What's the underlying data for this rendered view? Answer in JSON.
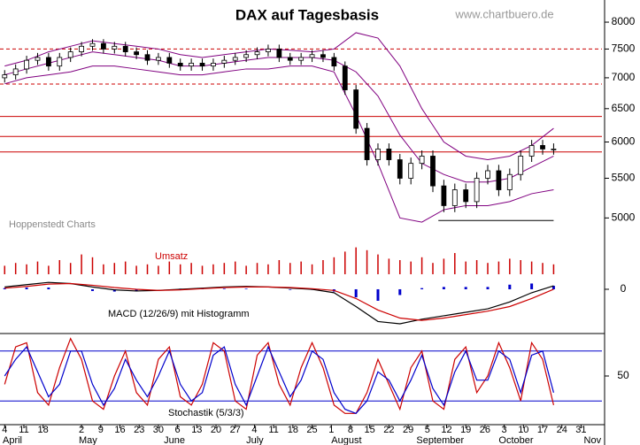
{
  "title": "DAX auf Tagesbasis",
  "source": "www.chartbuero.de",
  "credit": "Hoppenstedt Charts",
  "chart_data": [
    {
      "type": "candlestick",
      "x": [
        3,
        7,
        11,
        15,
        19,
        23,
        27,
        31,
        35,
        39,
        43,
        47,
        51,
        55,
        59,
        63,
        67,
        71,
        75,
        79,
        83,
        87,
        91,
        95,
        99,
        103,
        107,
        111,
        115,
        119,
        123,
        127,
        131,
        135,
        139,
        143,
        147,
        151,
        155,
        159,
        163,
        167,
        171,
        175,
        179,
        183,
        187,
        191,
        195,
        199,
        203
      ],
      "open": [
        7000,
        7050,
        7150,
        7300,
        7350,
        7200,
        7350,
        7450,
        7550,
        7600,
        7500,
        7550,
        7450,
        7400,
        7300,
        7350,
        7250,
        7200,
        7250,
        7200,
        7250,
        7300,
        7350,
        7400,
        7450,
        7500,
        7350,
        7300,
        7350,
        7400,
        7350,
        7200,
        6800,
        6200,
        5750,
        5900,
        5750,
        5500,
        5700,
        5800,
        5400,
        5150,
        5350,
        5200,
        5500,
        5600,
        5350,
        5550,
        5800,
        5950,
        5900
      ],
      "high": [
        7130,
        7230,
        7380,
        7430,
        7430,
        7430,
        7530,
        7630,
        7680,
        7680,
        7630,
        7630,
        7530,
        7480,
        7430,
        7430,
        7330,
        7330,
        7330,
        7330,
        7380,
        7430,
        7480,
        7530,
        7580,
        7580,
        7430,
        7430,
        7480,
        7480,
        7430,
        7280,
        6880,
        6280,
        5980,
        5980,
        5830,
        5780,
        5880,
        5880,
        5480,
        5430,
        5430,
        5580,
        5680,
        5680,
        5630,
        5880,
        6030,
        6030,
        5980
      ],
      "low": [
        6920,
        6970,
        7070,
        7220,
        7120,
        7120,
        7270,
        7370,
        7470,
        7420,
        7420,
        7370,
        7320,
        7220,
        7220,
        7170,
        7120,
        7120,
        7120,
        7120,
        7170,
        7220,
        7270,
        7320,
        7370,
        7270,
        7220,
        7220,
        7270,
        7270,
        7120,
        6720,
        6120,
        5670,
        5670,
        5670,
        5420,
        5420,
        5620,
        5320,
        5070,
        5070,
        5120,
        5120,
        5420,
        5270,
        5270,
        5470,
        5720,
        5820,
        5820
      ],
      "close": [
        7050,
        7150,
        7300,
        7350,
        7200,
        7350,
        7450,
        7550,
        7600,
        7500,
        7550,
        7450,
        7400,
        7300,
        7350,
        7250,
        7200,
        7250,
        7200,
        7250,
        7300,
        7350,
        7400,
        7450,
        7500,
        7350,
        7300,
        7350,
        7400,
        7350,
        7200,
        6800,
        6200,
        5750,
        5900,
        5750,
        5500,
        5700,
        5800,
        5400,
        5150,
        5350,
        5200,
        5500,
        5600,
        5350,
        5550,
        5800,
        5950,
        5900,
        5900
      ],
      "xlim": [
        1.3,
        220.6
      ],
      "ylim": [
        4705,
        8437
      ],
      "log": true,
      "yticks": [
        5000,
        5500,
        6000,
        6500,
        7000,
        7500,
        8000
      ],
      "bands": {
        "color": "#800080",
        "x": [
          3,
          11,
          19,
          27,
          35,
          43,
          51,
          59,
          67,
          75,
          83,
          91,
          99,
          107,
          115,
          123,
          131,
          139,
          147,
          155,
          163,
          171,
          179,
          187,
          195,
          203
        ],
        "series": [
          {
            "values": [
              7200,
              7300,
              7450,
              7550,
              7650,
              7600,
              7550,
              7500,
              7400,
              7350,
              7400,
              7450,
              7500,
              7480,
              7450,
              7500,
              7800,
              7700,
              7200,
              6500,
              6000,
              5800,
              5750,
              5800,
              5950,
              6200
            ]
          },
          {
            "values": [
              7050,
              7150,
              7250,
              7350,
              7450,
              7400,
              7350,
              7300,
              7200,
              7200,
              7250,
              7300,
              7350,
              7350,
              7350,
              7300,
              7100,
              6700,
              6100,
              5700,
              5550,
              5450,
              5450,
              5500,
              5650,
              5800
            ]
          },
          {
            "values": [
              6900,
              7000,
              7050,
              7100,
              7200,
              7200,
              7150,
              7100,
              7050,
              7050,
              7100,
              7150,
              7150,
              7200,
              7200,
              7100,
              6400,
              5700,
              5000,
              4950,
              5100,
              5150,
              5150,
              5200,
              5300,
              5350
            ]
          }
        ]
      },
      "reference_color": "#cc0000",
      "reference_lines": [
        {
          "value": 7500,
          "style": "dashed"
        },
        {
          "value": 6895,
          "style": "dashed"
        },
        {
          "value": 6380,
          "style": "solid"
        },
        {
          "value": 6080,
          "style": "solid"
        },
        {
          "value": 5859,
          "style": "solid"
        }
      ],
      "support_line": {
        "value": 4970,
        "x": [
          161,
          203
        ]
      },
      "volume": {
        "title": "Umsatz",
        "color": "#cc0000",
        "ylim": [
          0,
          100
        ],
        "values": [
          30,
          40,
          35,
          45,
          30,
          50,
          40,
          70,
          60,
          35,
          40,
          45,
          30,
          35,
          30,
          45,
          35,
          40,
          30,
          35,
          40,
          45,
          30,
          40,
          35,
          50,
          40,
          45,
          35,
          50,
          60,
          80,
          95,
          85,
          70,
          55,
          50,
          45,
          60,
          40,
          55,
          75,
          45,
          50,
          40,
          45,
          55,
          50,
          45,
          40,
          35
        ]
      }
    },
    {
      "type": "line",
      "title": "MACD (12/26/9) mit Histogramm",
      "x": [
        3,
        11,
        19,
        27,
        35,
        43,
        51,
        59,
        67,
        75,
        83,
        91,
        99,
        107,
        115,
        123,
        131,
        139,
        147,
        155,
        163,
        171,
        179,
        187,
        195,
        203
      ],
      "xlim": [
        1.3,
        220.6
      ],
      "ylim": [
        -346,
        69
      ],
      "yticks": [
        0
      ],
      "series": [
        {
          "color": "#000000",
          "values": [
            20,
            40,
            60,
            50,
            20,
            -5,
            -15,
            -10,
            0,
            10,
            20,
            25,
            20,
            10,
            0,
            -30,
            -150,
            -280,
            -300,
            -260,
            -230,
            -200,
            -170,
            -110,
            -30,
            30
          ]
        },
        {
          "color": "#cc0000",
          "values": [
            10,
            25,
            45,
            50,
            35,
            15,
            0,
            -10,
            -5,
            5,
            15,
            20,
            20,
            15,
            5,
            -10,
            -80,
            -180,
            -250,
            -270,
            -250,
            -220,
            -190,
            -150,
            -80,
            0
          ]
        }
      ],
      "histogram": {
        "color": "#0000cc",
        "values": [
          10,
          15,
          15,
          0,
          -15,
          -20,
          -15,
          0,
          5,
          5,
          5,
          5,
          0,
          -5,
          -5,
          -20,
          -70,
          -100,
          -50,
          10,
          20,
          20,
          20,
          40,
          50,
          30
        ]
      }
    },
    {
      "type": "line",
      "title": "Stochastik (5/3/3)",
      "x": [
        3,
        7,
        11,
        15,
        19,
        23,
        27,
        31,
        35,
        39,
        43,
        47,
        51,
        55,
        59,
        63,
        67,
        71,
        75,
        79,
        83,
        87,
        91,
        95,
        99,
        103,
        107,
        111,
        115,
        119,
        123,
        127,
        131,
        135,
        139,
        143,
        147,
        151,
        155,
        159,
        163,
        167,
        171,
        175,
        179,
        183,
        187,
        191,
        195,
        199,
        203
      ],
      "xlim": [
        1.3,
        220.6
      ],
      "ylim": [
        0,
        100
      ],
      "yticks": [
        50
      ],
      "hlines": [
        20,
        80
      ],
      "hline_color": "#0000cc",
      "series": [
        {
          "color": "#cc0000",
          "values": [
            40,
            85,
            90,
            30,
            15,
            60,
            95,
            70,
            20,
            10,
            50,
            80,
            30,
            15,
            70,
            85,
            25,
            15,
            40,
            90,
            80,
            20,
            10,
            75,
            90,
            40,
            15,
            60,
            90,
            60,
            15,
            5,
            5,
            30,
            70,
            40,
            10,
            60,
            80,
            20,
            10,
            70,
            85,
            30,
            50,
            90,
            60,
            20,
            90,
            70,
            15
          ]
        },
        {
          "color": "#0000cc",
          "values": [
            50,
            70,
            85,
            55,
            25,
            40,
            80,
            80,
            40,
            15,
            35,
            70,
            45,
            25,
            50,
            80,
            40,
            20,
            30,
            75,
            85,
            40,
            15,
            50,
            85,
            55,
            25,
            45,
            80,
            70,
            30,
            10,
            5,
            20,
            55,
            45,
            20,
            45,
            75,
            35,
            15,
            55,
            80,
            45,
            45,
            80,
            70,
            30,
            75,
            80,
            30
          ]
        }
      ],
      "xticks": [
        {
          "value": 3,
          "label": "4"
        },
        {
          "value": 10,
          "label": "11"
        },
        {
          "value": 17,
          "label": "18"
        },
        {
          "value": 31,
          "label": "2"
        },
        {
          "value": 38,
          "label": "9"
        },
        {
          "value": 45,
          "label": "16"
        },
        {
          "value": 52,
          "label": "23"
        },
        {
          "value": 59,
          "label": "30"
        },
        {
          "value": 66,
          "label": "6"
        },
        {
          "value": 73,
          "label": "13"
        },
        {
          "value": 80,
          "label": "20"
        },
        {
          "value": 87,
          "label": "27"
        },
        {
          "value": 94,
          "label": "4"
        },
        {
          "value": 101,
          "label": "11"
        },
        {
          "value": 108,
          "label": "18"
        },
        {
          "value": 115,
          "label": "25"
        },
        {
          "value": 122,
          "label": "1"
        },
        {
          "value": 129,
          "label": "8"
        },
        {
          "value": 136,
          "label": "15"
        },
        {
          "value": 143,
          "label": "22"
        },
        {
          "value": 150,
          "label": "29"
        },
        {
          "value": 157,
          "label": "5"
        },
        {
          "value": 164,
          "label": "12"
        },
        {
          "value": 171,
          "label": "19"
        },
        {
          "value": 178,
          "label": "26"
        },
        {
          "value": 185,
          "label": "3"
        },
        {
          "value": 192,
          "label": "10"
        },
        {
          "value": 199,
          "label": "17"
        },
        {
          "value": 206,
          "label": "24"
        },
        {
          "value": 213,
          "label": "31"
        }
      ],
      "month_ticks": [
        {
          "value": 0,
          "label": "April"
        },
        {
          "value": 30,
          "label": "May"
        },
        {
          "value": 61,
          "label": "June"
        },
        {
          "value": 91,
          "label": "July"
        },
        {
          "value": 122,
          "label": "August"
        },
        {
          "value": 153,
          "label": "September"
        },
        {
          "value": 183,
          "label": "October"
        },
        {
          "value": 214,
          "label": "Nov"
        }
      ]
    }
  ]
}
